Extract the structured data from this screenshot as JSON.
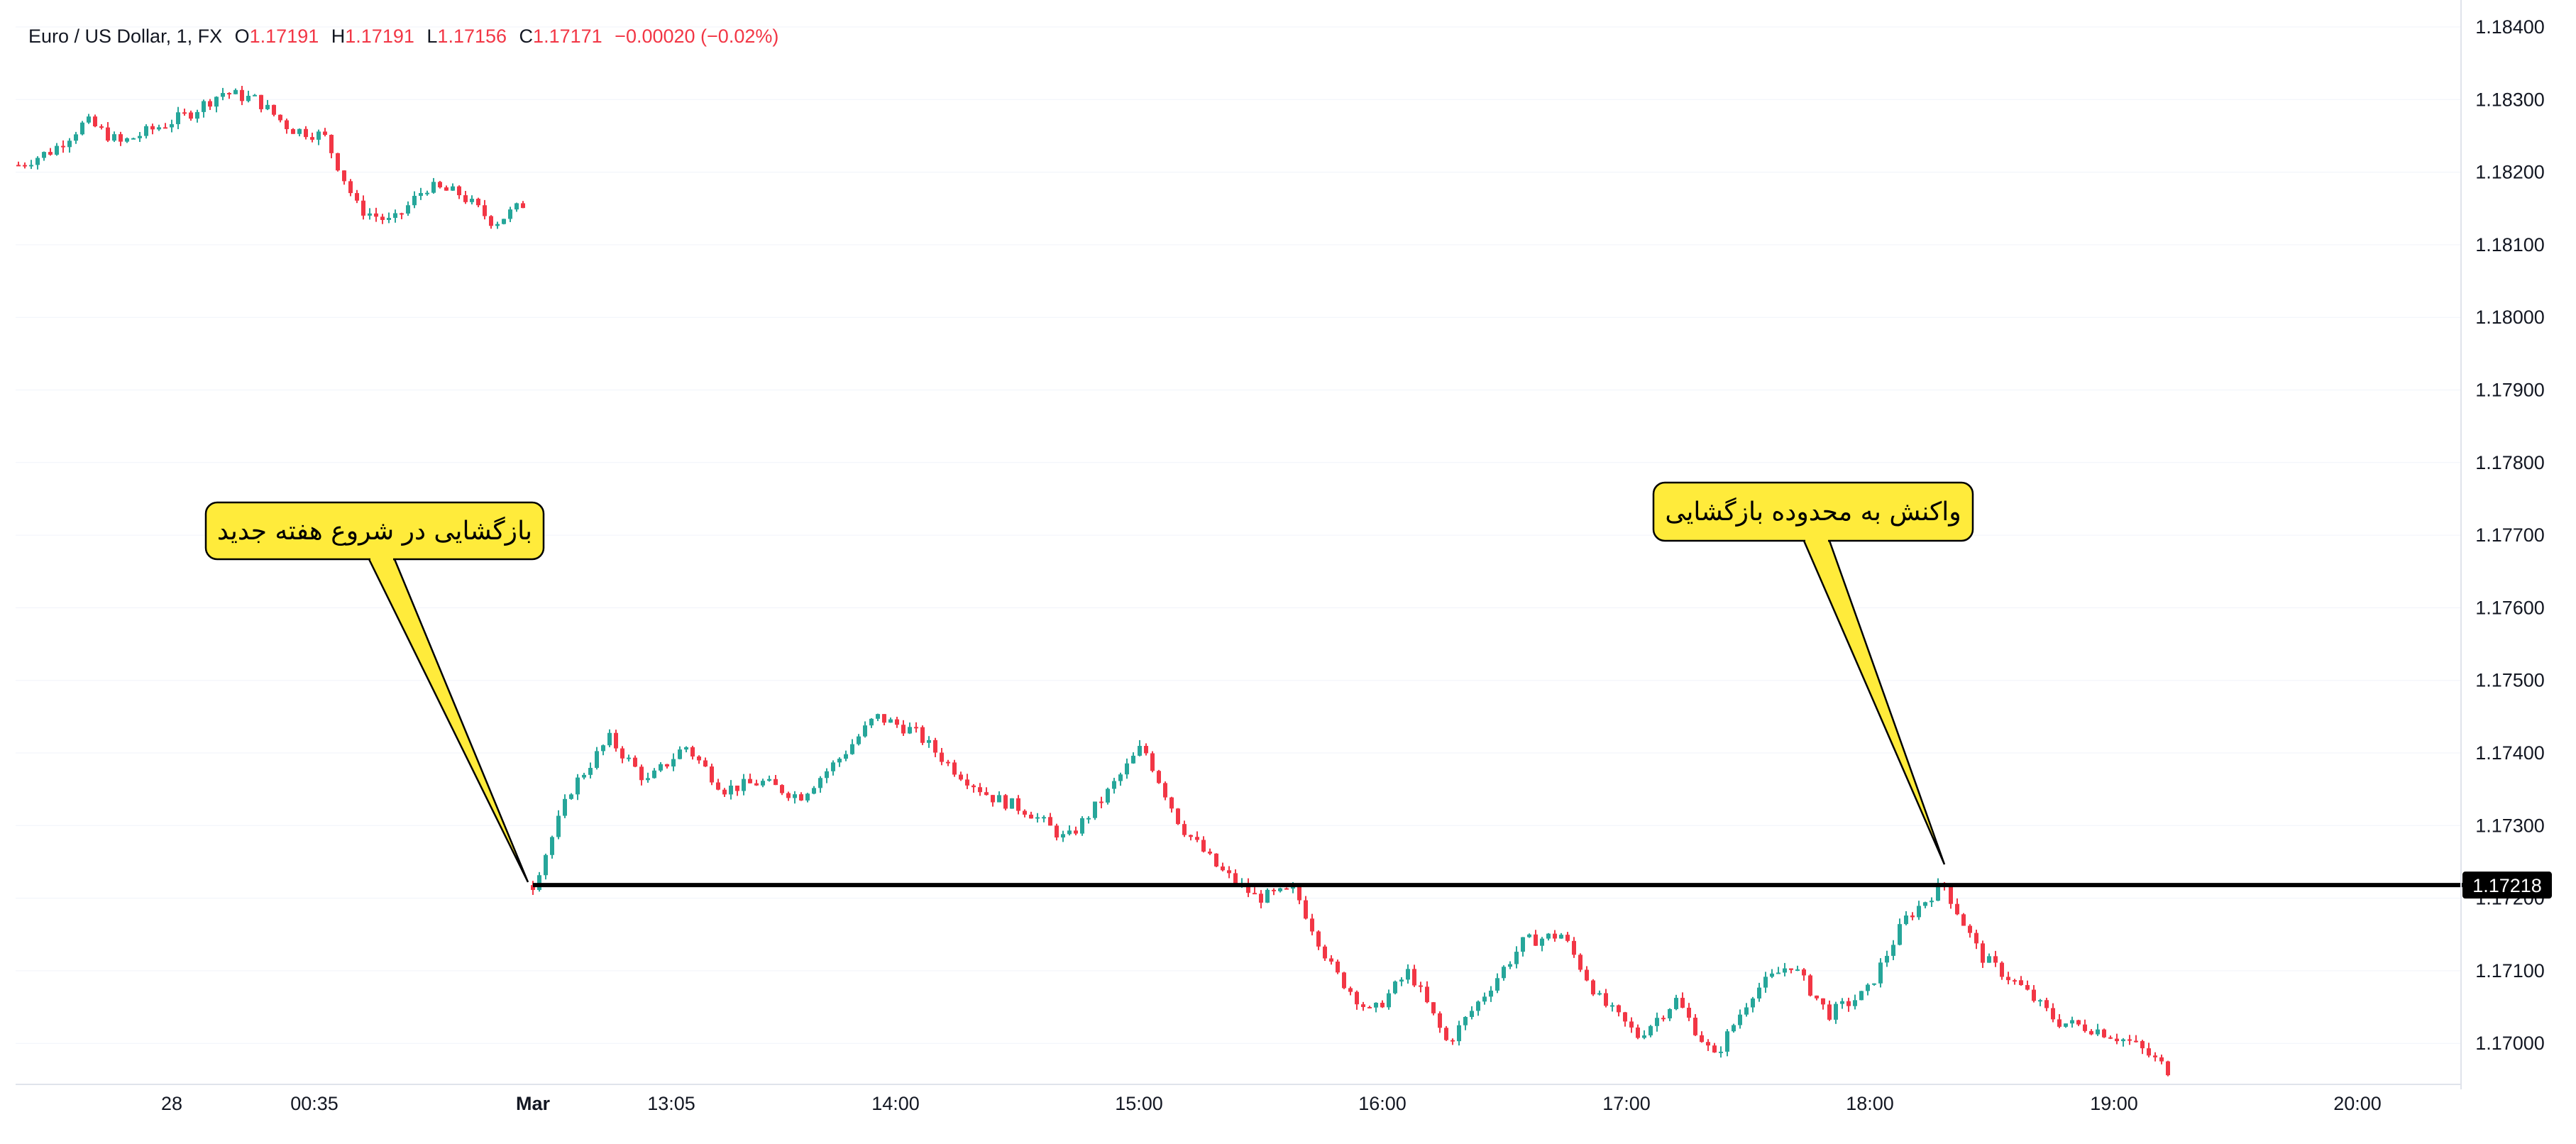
{
  "header": {
    "symbol": "Euro / US Dollar, 1, FX",
    "open_label": "O",
    "open": "1.17191",
    "high_label": "H",
    "high": "1.17191",
    "low_label": "L",
    "low": "1.17156",
    "close_label": "C",
    "close": "1.17171",
    "change": "−0.00020 (−0.02%)"
  },
  "colors": {
    "up": "#26a69a",
    "down": "#f23645",
    "text": "#131722",
    "callout_fill": "#ffeb3b",
    "level_line": "#000000",
    "grid": "#f0f3fa"
  },
  "chart_data": {
    "type": "candlestick",
    "symbol": "Euro / US Dollar",
    "interval": "1",
    "ylim": [
      1.1695,
      1.1845
    ],
    "y_ticks": [
      "1.18400",
      "1.18300",
      "1.18200",
      "1.18100",
      "1.18000",
      "1.17900",
      "1.17800",
      "1.17700",
      "1.17600",
      "1.17500",
      "1.17400",
      "1.17300",
      "1.17200",
      "1.17100",
      "1.17000"
    ],
    "x_ticks": [
      "28",
      "00:35",
      "Mar",
      "13:05",
      "14:00",
      "15:00",
      "16:00",
      "17:00",
      "18:00",
      "19:00",
      "20:00"
    ],
    "horizontal_level": {
      "value": 1.17218,
      "label": "1.17218"
    },
    "price_path_friday": [
      [
        "28",
        1.1821
      ],
      [
        "",
        1.1823
      ],
      [
        "",
        1.1827
      ],
      [
        "",
        1.1824
      ],
      [
        "",
        1.1826
      ],
      [
        "",
        1.1828
      ],
      [
        "",
        1.1831
      ],
      [
        "",
        1.183
      ],
      [
        "",
        1.1826
      ],
      [
        "00:35",
        1.1825
      ],
      [
        "",
        1.1815
      ],
      [
        "",
        1.1813
      ],
      [
        "",
        1.1818
      ],
      [
        "",
        1.1817
      ],
      [
        "",
        1.1813
      ],
      [
        "Mar",
        1.1816
      ]
    ],
    "price_path_monday": [
      [
        "Mar",
        1.17218
      ],
      [
        "",
        1.1735
      ],
      [
        "",
        1.1742
      ],
      [
        "13:05",
        1.1736
      ],
      [
        "",
        1.1741
      ],
      [
        "",
        1.1735
      ],
      [
        "",
        1.1736
      ],
      [
        "",
        1.1734
      ],
      [
        "",
        1.1739
      ],
      [
        "14:00",
        1.1745
      ],
      [
        "",
        1.1743
      ],
      [
        "",
        1.1738
      ],
      [
        "",
        1.1734
      ],
      [
        "",
        1.1732
      ],
      [
        "",
        1.1728
      ],
      [
        "",
        1.1734
      ],
      [
        "15:00",
        1.1741
      ],
      [
        "",
        1.173
      ],
      [
        "",
        1.1724
      ],
      [
        "",
        1.172
      ],
      [
        "16:00",
        1.1721
      ],
      [
        "",
        1.171
      ],
      [
        "",
        1.1704
      ],
      [
        "",
        1.171
      ],
      [
        "",
        1.17
      ],
      [
        "",
        1.1707
      ],
      [
        "",
        1.1714
      ],
      [
        "17:00",
        1.1715
      ],
      [
        "",
        1.1706
      ],
      [
        "",
        1.1701
      ],
      [
        "",
        1.1706
      ],
      [
        "",
        1.1698
      ],
      [
        "",
        1.1707
      ],
      [
        "",
        1.1711
      ],
      [
        "",
        1.1704
      ],
      [
        "18:00",
        1.1707
      ],
      [
        "",
        1.1717
      ],
      [
        "",
        1.1722
      ],
      [
        "",
        1.1712
      ],
      [
        "",
        1.1708
      ],
      [
        "",
        1.1703
      ],
      [
        "",
        1.1702
      ],
      [
        "19:00",
        1.17
      ],
      [
        "",
        1.1696
      ]
    ],
    "annotations": [
      {
        "text": "بازگشایی در شروع هفته جدید",
        "points_to": "Mar open at 1.17218"
      },
      {
        "text": "واکنش به محدوده بازگشایی",
        "points_to": "reaction at 1.17218 after 18:00"
      }
    ]
  }
}
